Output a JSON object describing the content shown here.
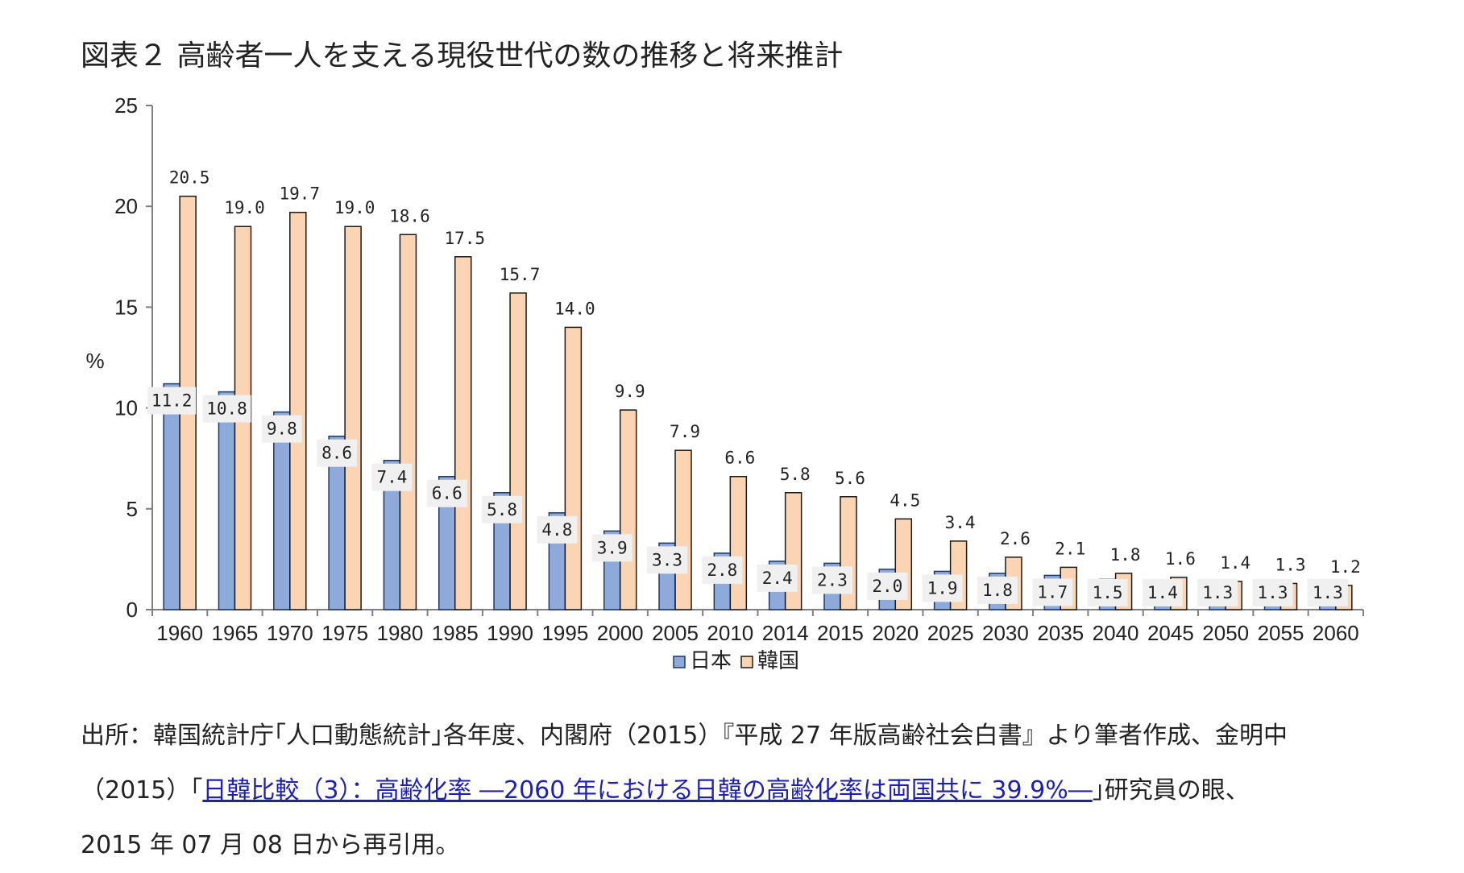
{
  "title": "図表２ 高齢者一人を支える現役世代の数の推移と将来推計",
  "chart_data": {
    "type": "bar",
    "title": "図表２ 高齢者一人を支える現役世代の数の推移と将来推計",
    "ylabel": "%",
    "xlabel": "",
    "ylim": [
      0,
      25
    ],
    "yticks": [
      "0",
      "5",
      "10",
      "15",
      "20",
      "25"
    ],
    "grid": false,
    "legend_position": "bottom",
    "categories": [
      "1960",
      "1965",
      "1970",
      "1975",
      "1980",
      "1985",
      "1990",
      "1995",
      "2000",
      "2005",
      "2010",
      "2014",
      "2015",
      "2020",
      "2025",
      "2030",
      "2035",
      "2040",
      "2045",
      "2050",
      "2055",
      "2060"
    ],
    "series": [
      {
        "name": "日本",
        "color": "#8eaadb",
        "values": [
          11.2,
          10.8,
          9.8,
          8.6,
          7.4,
          6.6,
          5.8,
          4.8,
          3.9,
          3.3,
          2.8,
          2.4,
          2.3,
          2.0,
          1.9,
          1.8,
          1.7,
          1.5,
          1.4,
          1.3,
          1.3,
          1.3
        ],
        "labels": [
          "11.2",
          "10.8",
          "9.8",
          "8.6",
          "7.4",
          "6.6",
          "5.8",
          "4.8",
          "3.9",
          "3.3",
          "2.8",
          "2.4",
          "2.3",
          "2.0",
          "1.9",
          "1.8",
          "1.7",
          "1.5",
          "1.4",
          "1.3",
          "1.3",
          "1.3"
        ]
      },
      {
        "name": "韓国",
        "color": "#fbd4b4",
        "values": [
          20.5,
          19.0,
          19.7,
          19.0,
          18.6,
          17.5,
          15.7,
          14.0,
          9.9,
          7.9,
          6.6,
          5.8,
          5.6,
          4.5,
          3.4,
          2.6,
          2.1,
          1.8,
          1.6,
          1.4,
          1.3,
          1.2
        ],
        "labels": [
          "20.5",
          "19.0",
          "19.7",
          "19.0",
          "18.6",
          "17.5",
          "15.7",
          "14.0",
          "9.9",
          "7.9",
          "6.6",
          "5.8",
          "5.6",
          "4.5",
          "3.4",
          "2.6",
          "2.1",
          "1.8",
          "1.6",
          "1.4",
          "1.3",
          "1.2"
        ]
      }
    ]
  },
  "source": {
    "line1": "出所：韓国統計庁｢人口動態統計｣各年度、内閣府（2015）『平成 27 年版高齢社会白書』より筆者作成、金明中",
    "line2_prefix": "（2015）｢",
    "line2_link": "日韓比較（3）：高齢化率 ―2060 年における日韓の高齢化率は両国共に 39.9%―",
    "line2_suffix": "｣研究員の眼、",
    "line3": "2015 年 07 月 08 日から再引用。"
  }
}
